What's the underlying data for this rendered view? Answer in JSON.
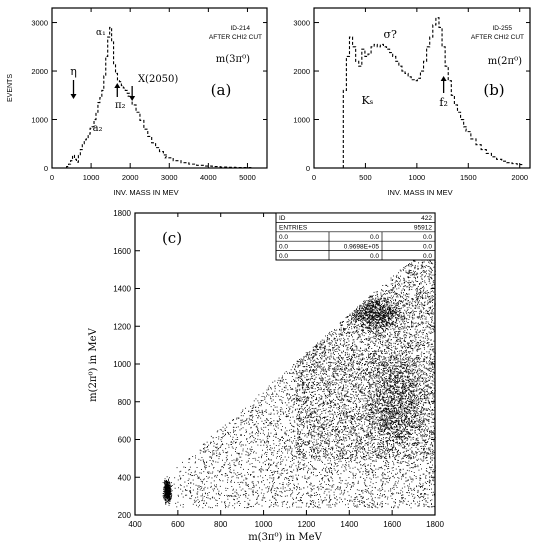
{
  "chart_data": [
    {
      "id": "a",
      "type": "histogram",
      "panel_label": "(a)",
      "id_label": "ID-214",
      "cut_label": "AFTER CHI2 CUT",
      "process_label": "m(3π⁰)",
      "ylabel": "EVENTS",
      "xlabel": "INV. MASS IN MEV",
      "xlim": [
        0,
        5500
      ],
      "ylim": [
        0,
        3300
      ],
      "x_ticks": [
        0,
        1000,
        2000,
        3000,
        4000,
        5000
      ],
      "y_ticks": [
        0,
        1000,
        2000,
        3000
      ],
      "bin_centers": [
        400,
        450,
        500,
        550,
        600,
        650,
        700,
        750,
        800,
        850,
        900,
        950,
        1000,
        1050,
        1100,
        1150,
        1200,
        1250,
        1300,
        1350,
        1400,
        1450,
        1500,
        1550,
        1600,
        1650,
        1700,
        1750,
        1800,
        1850,
        1900,
        1950,
        2000,
        2100,
        2200,
        2300,
        2400,
        2500,
        2600,
        2700,
        2800,
        2900,
        3000,
        3200,
        3400,
        3600,
        3800,
        4000,
        4200,
        4400,
        4600,
        4800,
        5000
      ],
      "values": [
        30,
        80,
        150,
        260,
        180,
        120,
        260,
        380,
        500,
        580,
        600,
        700,
        820,
        850,
        1000,
        1150,
        1350,
        1450,
        1600,
        1900,
        2300,
        2700,
        2900,
        2600,
        2150,
        1950,
        1800,
        1780,
        1700,
        1650,
        1600,
        1540,
        1480,
        1300,
        1150,
        980,
        800,
        650,
        520,
        420,
        340,
        270,
        210,
        150,
        110,
        80,
        55,
        40,
        30,
        20,
        15,
        10,
        8
      ],
      "annotations": [
        {
          "text": "η",
          "x": 550
        },
        {
          "text": "a₂",
          "x": 1320
        },
        {
          "text": "α₁",
          "x": 1250
        },
        {
          "text": "π₂",
          "x": 1670
        },
        {
          "text": "X(2050)",
          "x": 2050
        }
      ]
    },
    {
      "id": "b",
      "type": "histogram",
      "panel_label": "(b)",
      "id_label": "ID-255",
      "cut_label": "AFTER CHI2 CUT",
      "process_label": "m(2π⁰)",
      "xlabel": "INV. MASS IN MEV",
      "xlim": [
        0,
        2100
      ],
      "ylim": [
        0,
        3300
      ],
      "x_ticks": [
        0,
        500,
        1000,
        1500,
        2000
      ],
      "y_ticks": [
        0,
        1000,
        2000,
        3000
      ],
      "bin_centers": [
        300,
        330,
        360,
        390,
        420,
        450,
        480,
        510,
        540,
        570,
        600,
        630,
        660,
        690,
        720,
        750,
        780,
        810,
        840,
        870,
        900,
        930,
        960,
        990,
        1020,
        1050,
        1080,
        1110,
        1140,
        1170,
        1200,
        1230,
        1260,
        1290,
        1320,
        1350,
        1380,
        1410,
        1440,
        1470,
        1500,
        1550,
        1600,
        1650,
        1700,
        1750,
        1800,
        1850,
        1900,
        1950,
        2000
      ],
      "values": [
        1600,
        2300,
        2700,
        2500,
        2200,
        2100,
        2450,
        2300,
        2350,
        2500,
        2550,
        2500,
        2550,
        2500,
        2450,
        2380,
        2300,
        2200,
        2100,
        2000,
        1950,
        1880,
        1820,
        1800,
        1850,
        2000,
        2200,
        2500,
        2700,
        2950,
        3100,
        2900,
        2500,
        2100,
        1800,
        1500,
        1300,
        1150,
        1000,
        850,
        750,
        600,
        480,
        380,
        300,
        230,
        180,
        140,
        110,
        90,
        70
      ],
      "annotations": [
        {
          "text": "Kₛ",
          "x": 500
        },
        {
          "text": "σ?",
          "x": 780
        },
        {
          "text": "f₂",
          "x": 1270
        }
      ]
    },
    {
      "id": "c",
      "type": "scatter",
      "panel_label": "(c)",
      "xlabel": "m(3π⁰) in MeV",
      "ylabel": "m(2π⁰) in MeV",
      "xlim": [
        400,
        1800
      ],
      "ylim": [
        200,
        1800
      ],
      "x_ticks": [
        400,
        600,
        800,
        1000,
        1200,
        1400,
        1600,
        1800
      ],
      "y_ticks": [
        200,
        400,
        600,
        800,
        1000,
        1200,
        1400,
        1600,
        1800
      ],
      "kinematic_boundary": "y < x - 135",
      "dense_regions": [
        {
          "x": 550,
          "y": 330
        },
        {
          "x": 1530,
          "y": 1270
        },
        {
          "x": 1620,
          "y": 800
        }
      ],
      "stats_box": {
        "rows": [
          [
            "ID",
            "",
            "422"
          ],
          [
            "ENTRIES",
            "",
            "95912"
          ],
          [
            "0.0",
            "0.0",
            "0.0"
          ],
          [
            "0.0",
            "0.9698E+05",
            "0.0"
          ],
          [
            "0.0",
            "0.0",
            "0.0"
          ]
        ]
      }
    }
  ]
}
